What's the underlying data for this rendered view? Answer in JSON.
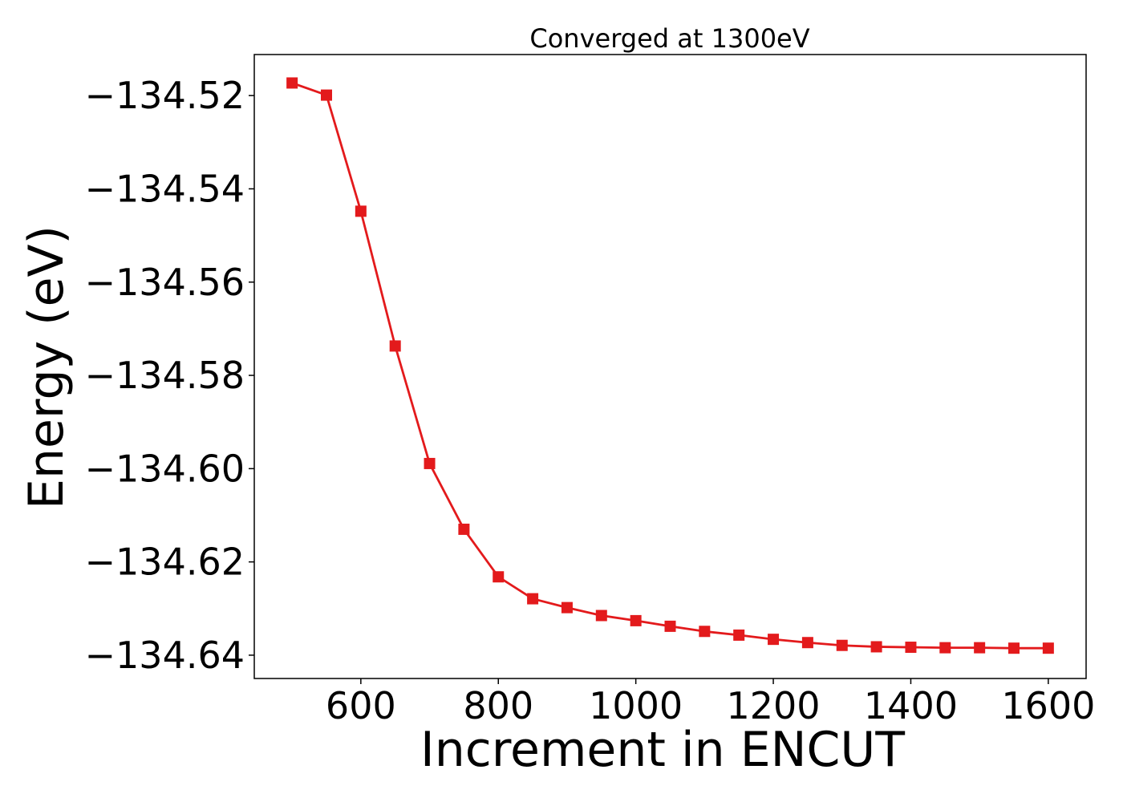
{
  "chart_data": {
    "type": "line",
    "title": "Converged at 1300eV",
    "xlabel": "Increment in ENCUT",
    "ylabel": "Energy (eV)",
    "xlim": [
      445,
      1655
    ],
    "ylim": [
      -134.645,
      -134.5112
    ],
    "x_ticks": [
      600,
      800,
      1000,
      1200,
      1400,
      1600
    ],
    "x_tick_labels": [
      "600",
      "800",
      "1000",
      "1200",
      "1400",
      "1600"
    ],
    "y_ticks": [
      -134.52,
      -134.54,
      -134.56,
      -134.58,
      -134.6,
      -134.62,
      -134.64
    ],
    "y_tick_labels": [
      "−134.52",
      "−134.54",
      "−134.56",
      "−134.58",
      "−134.60",
      "−134.62",
      "−134.64"
    ],
    "grid": false,
    "series": [
      {
        "color": "#e31a1c",
        "marker": "square",
        "x": [
          500,
          550,
          600,
          650,
          700,
          750,
          800,
          850,
          900,
          950,
          1000,
          1050,
          1100,
          1150,
          1200,
          1250,
          1300,
          1350,
          1400,
          1450,
          1500,
          1550,
          1600
        ],
        "y": [
          -134.5173,
          -134.5199,
          -134.5448,
          -134.5737,
          -134.5989,
          -134.613,
          -134.6232,
          -134.6279,
          -134.6298,
          -134.6315,
          -134.6326,
          -134.6338,
          -134.6349,
          -134.6357,
          -134.6366,
          -134.6373,
          -134.6379,
          -134.6382,
          -134.6383,
          -134.6384,
          -134.6384,
          -134.6385,
          -134.6385
        ]
      }
    ]
  }
}
